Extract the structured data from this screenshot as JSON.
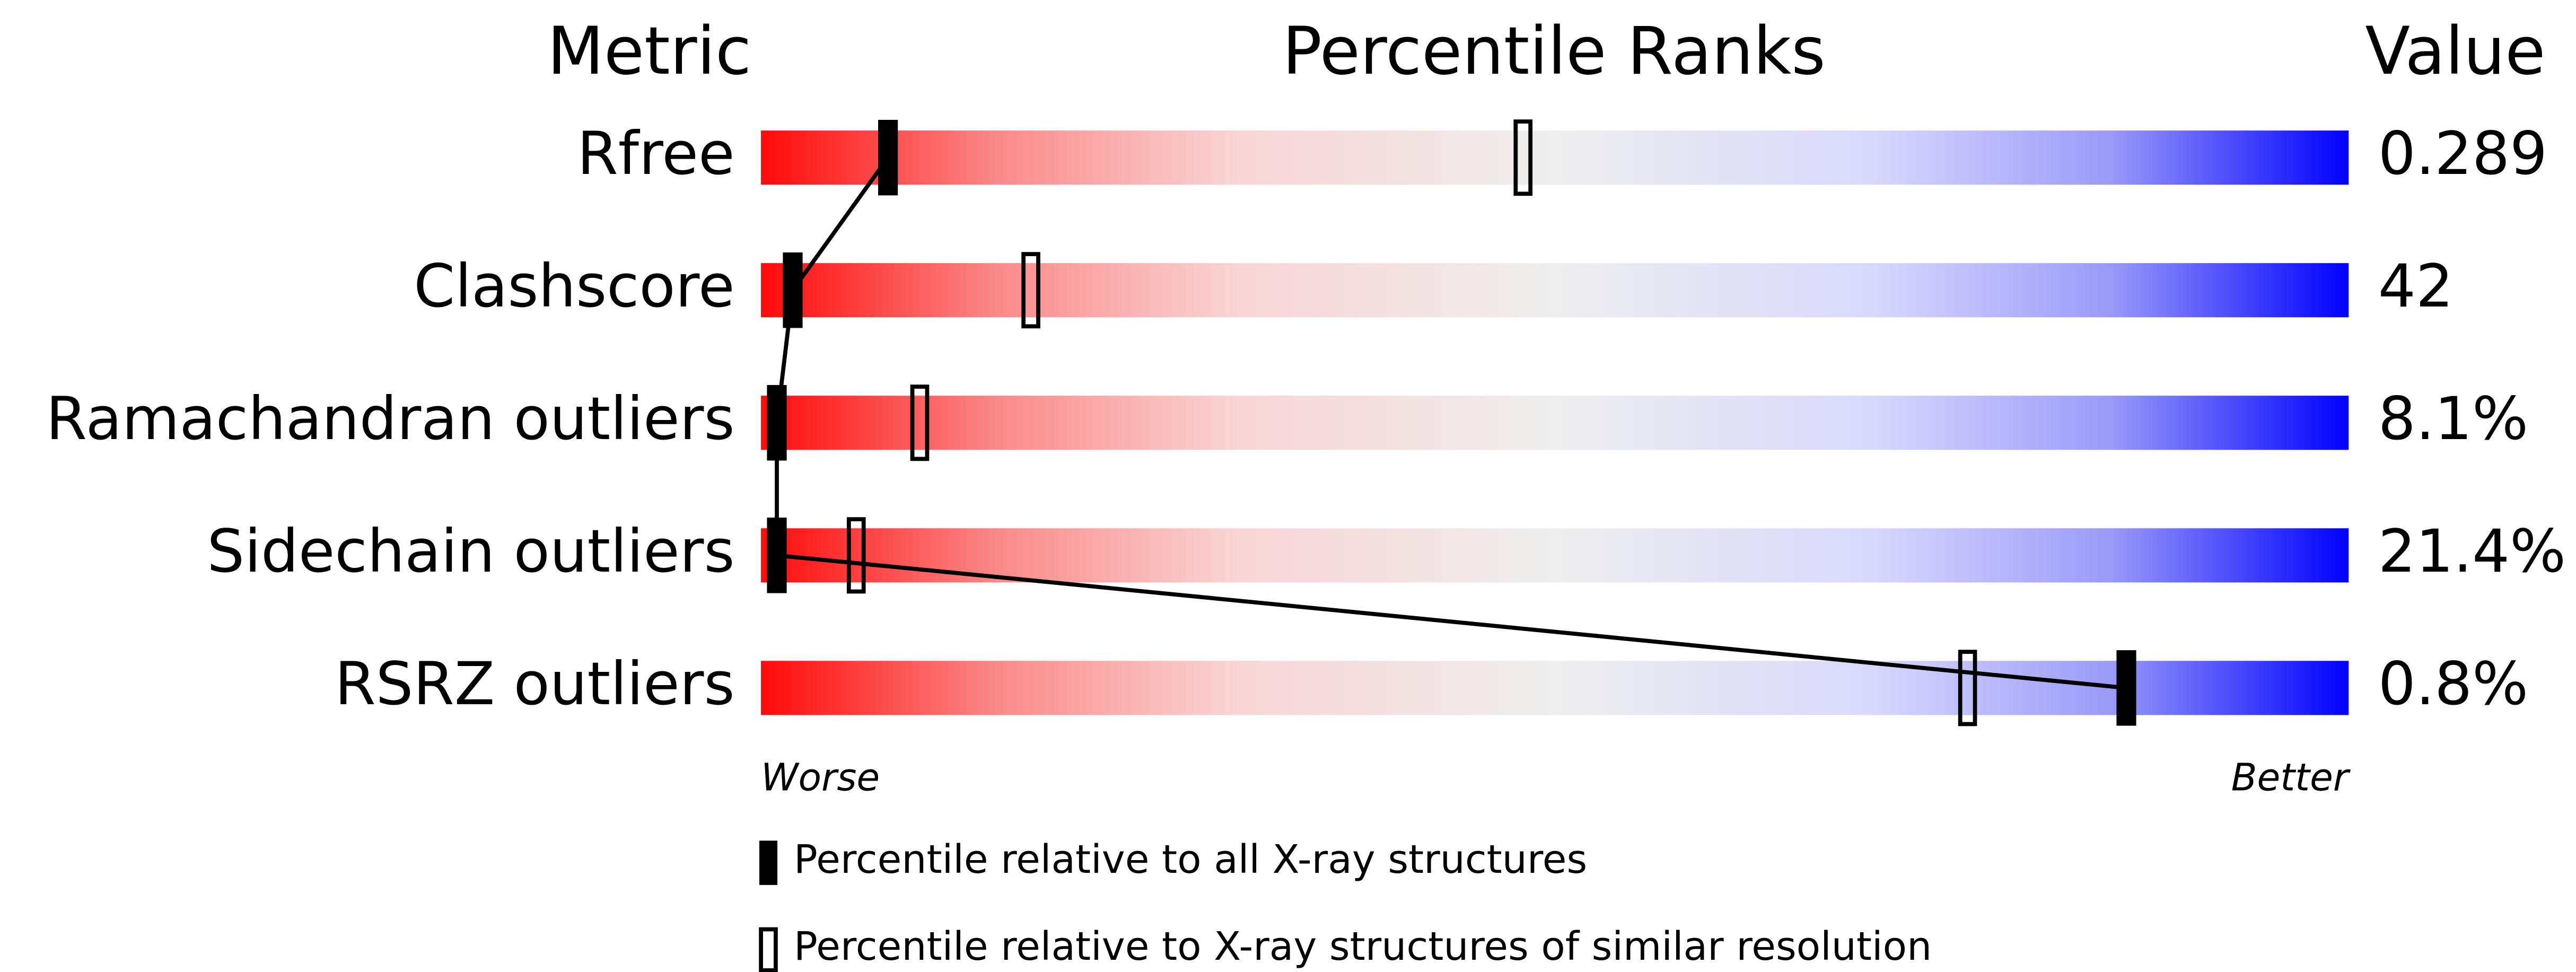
{
  "chart_data": {
    "type": "percentile",
    "headers": [
      "Metric",
      "Percentile Ranks",
      "Value"
    ],
    "categories": [
      "Rfree",
      "Clashscore",
      "Ramachandran outliers",
      "Sidechain outliers",
      "RSRZ outliers"
    ],
    "metric_values": [
      "0.289",
      "42",
      "8.1%",
      "21.4%",
      "0.8%"
    ],
    "series": [
      {
        "name": "Percentile relative to all X-ray structures",
        "color": "#000000",
        "values": [
          8,
          2,
          1,
          1,
          86
        ]
      },
      {
        "name": "Percentile relative to X-ray structures of similar resolution",
        "color": "#000000",
        "values": [
          48,
          17,
          10,
          6,
          76
        ]
      }
    ],
    "xlim": [
      0,
      100
    ],
    "axis_labels": [
      "Worse",
      "Better"
    ]
  }
}
